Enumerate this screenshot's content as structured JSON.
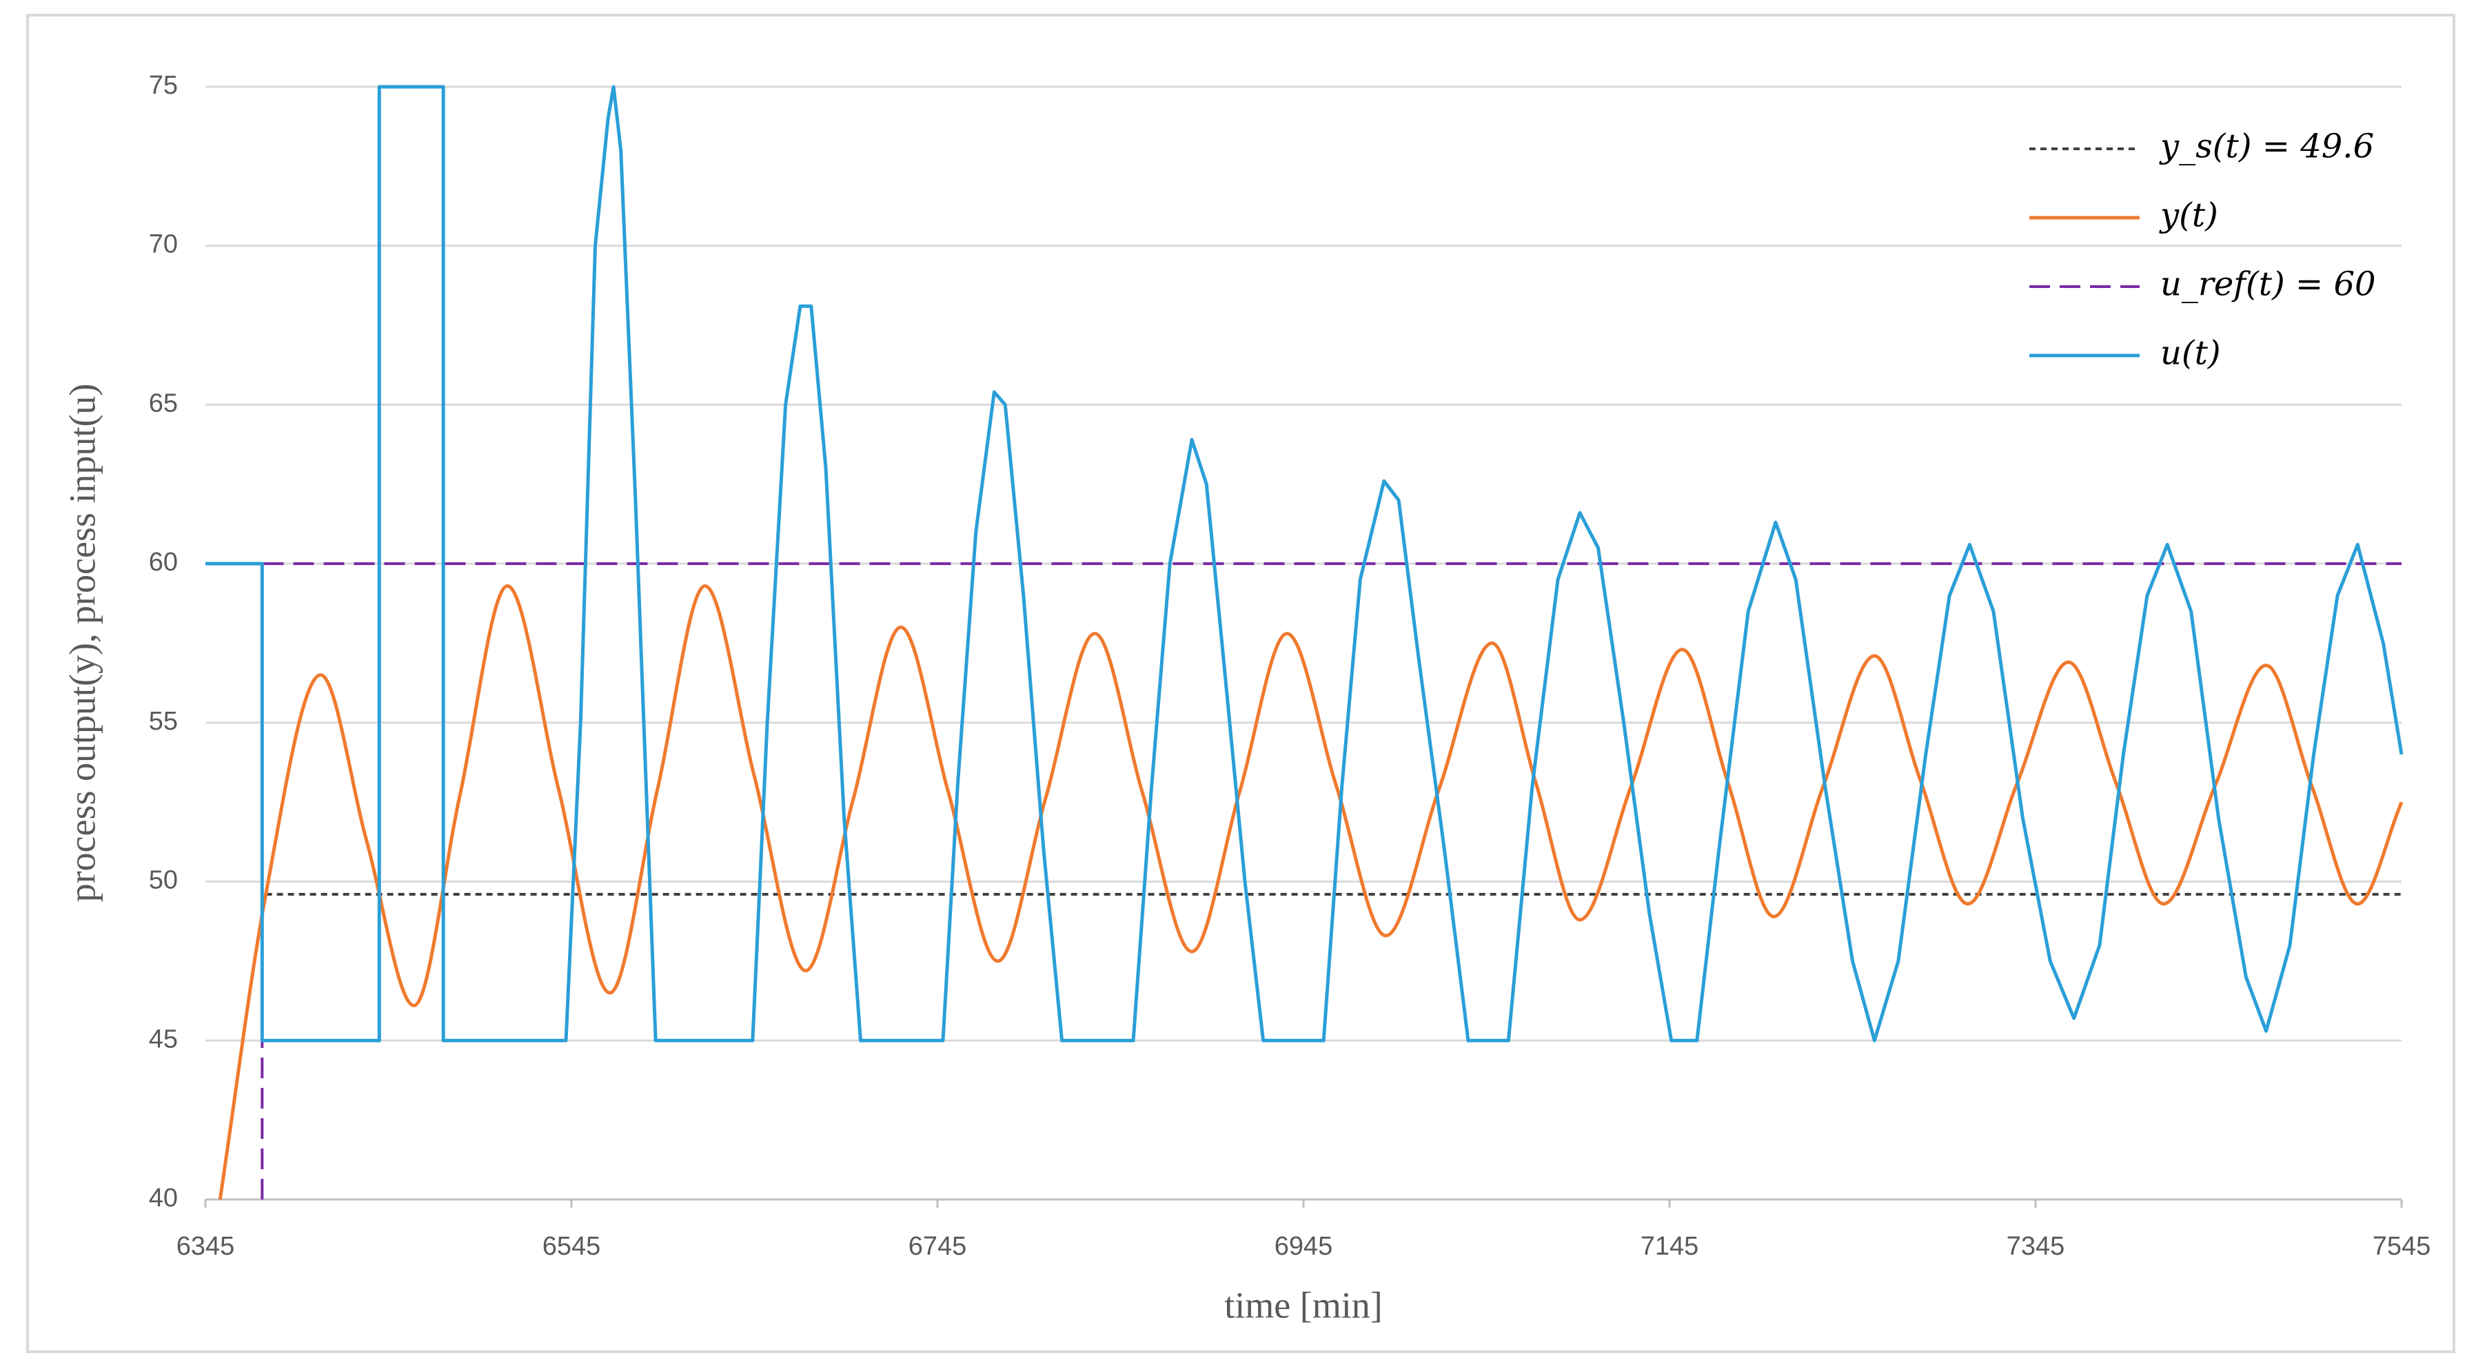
{
  "chart_data": {
    "type": "line",
    "xlabel": "time [min]",
    "ylabel": "process output(y), process input(u)",
    "xlim": [
      6345,
      7545
    ],
    "xticks": [
      6345,
      6545,
      6745,
      6945,
      7145,
      7345,
      7545
    ],
    "ylim": [
      40,
      75
    ],
    "yticks": [
      40,
      45,
      50,
      55,
      60,
      65,
      70,
      75
    ],
    "grid": true,
    "legend": "upper right",
    "series": [
      {
        "name": "y_s(t) = 49.6",
        "color": "#404040",
        "dash": "dotted",
        "x": [
          6378,
          7545
        ],
        "values": [
          49.6,
          49.6
        ]
      },
      {
        "name": "y(t)",
        "color": "#f07a2e",
        "smooth": true,
        "x": [
          6353,
          6378,
          6408,
          6433,
          6459,
          6484,
          6510,
          6538,
          6566,
          6592,
          6618,
          6645,
          6673,
          6699,
          6725,
          6751,
          6778,
          6804,
          6831,
          6857,
          6884,
          6910,
          6936,
          6963,
          6990,
          7019,
          7048,
          7072,
          7096,
          7124,
          7152,
          7177,
          7202,
          7229,
          7257,
          7282,
          7308,
          7335,
          7363,
          7389,
          7415,
          7443,
          7471,
          7496,
          7521,
          7545
        ],
        "values": [
          40,
          49.6,
          56.5,
          51.3,
          46.1,
          52.7,
          59.3,
          52.9,
          46.5,
          52.9,
          59.3,
          53.3,
          47.2,
          52.6,
          58.0,
          52.8,
          47.5,
          52.6,
          57.8,
          52.8,
          47.8,
          52.8,
          57.8,
          53.0,
          48.3,
          52.9,
          57.5,
          53.1,
          48.8,
          53.0,
          57.3,
          53.1,
          48.9,
          53.0,
          57.1,
          53.2,
          49.3,
          53.1,
          56.9,
          53.1,
          49.3,
          53.0,
          56.8,
          53.0,
          49.3,
          52.5
        ]
      },
      {
        "name": "u_ref(t) = 60",
        "color": "#7a2aa6",
        "dash": "dashed",
        "x": [
          6376,
          6376,
          7545
        ],
        "values": [
          40,
          60,
          60
        ]
      },
      {
        "name": "u(t)",
        "color": "#2a9fd8",
        "x": [
          6345,
          6376,
          6376,
          6440,
          6440,
          6475,
          6475,
          6542,
          6550,
          6558,
          6565,
          6568,
          6572,
          6580,
          6591,
          6644,
          6652,
          6662,
          6670,
          6676,
          6684,
          6694,
          6703,
          6748,
          6756,
          6766,
          6776,
          6782,
          6792,
          6803,
          6813,
          6852,
          6862,
          6872,
          6884,
          6892,
          6903,
          6913,
          6923,
          6956,
          6966,
          6976,
          6989,
          6997,
          7008,
          7022,
          7035,
          7057,
          7070,
          7084,
          7096,
          7106,
          7120,
          7134,
          7146,
          7160,
          7172,
          7188,
          7203,
          7214,
          7230,
          7245,
          7257,
          7270,
          7285,
          7298,
          7309,
          7322,
          7338,
          7353,
          7366,
          7380,
          7393,
          7406,
          7417,
          7430,
          7445,
          7460,
          7471,
          7484,
          7497,
          7510,
          7521,
          7535,
          7545
        ],
        "values": [
          60,
          60,
          45,
          45,
          75,
          75,
          45,
          45,
          55,
          70,
          74,
          75,
          73,
          62,
          45,
          45,
          55,
          65,
          68.1,
          68.1,
          63,
          52,
          45,
          45,
          53,
          61,
          65.4,
          65,
          59,
          51,
          45,
          45,
          53,
          60,
          63.9,
          62.5,
          56,
          50,
          45,
          45,
          53,
          59.5,
          62.6,
          62,
          57,
          51,
          45,
          45,
          53,
          59.5,
          61.6,
          60.5,
          55,
          49,
          45,
          45,
          51,
          58.5,
          61.3,
          59.5,
          53,
          47.5,
          45,
          47.5,
          54,
          59,
          60.6,
          58.5,
          52,
          47.5,
          45.7,
          48,
          54,
          59,
          60.6,
          58.5,
          52,
          47,
          45.3,
          48,
          54,
          59,
          60.6,
          57.5,
          54
        ]
      }
    ]
  }
}
